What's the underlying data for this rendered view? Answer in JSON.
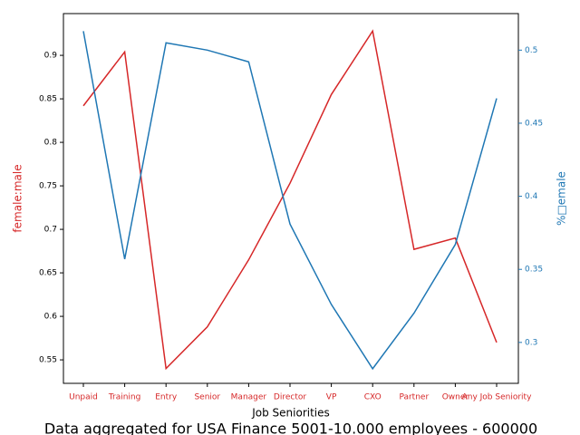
{
  "chart_data": {
    "type": "line",
    "title": "Data aggregated for USA Finance 5001-10.000 employees - 600000",
    "x_label": "Job Seniorities",
    "y_label": "female:male",
    "y2_label": "%□emale",
    "categories": [
      "Unpaid",
      "Training",
      "Entry",
      "Senior",
      "Manager",
      "Director",
      "VP",
      "CXO",
      "Partner",
      "Owner",
      "Any Job Seniority"
    ],
    "series": [
      {
        "name": "female:male",
        "color": "#d62728",
        "values": [
          0.842,
          0.904,
          0.54,
          0.588,
          0.665,
          0.753,
          0.855,
          0.928,
          0.677,
          0.69,
          0.57
        ]
      },
      {
        "name": "%female",
        "color": "#1f77b4",
        "axis": "y2",
        "values": [
          0.513,
          0.357,
          0.505,
          0.5,
          0.492,
          0.381,
          0.326,
          0.282,
          0.32,
          0.367,
          0.467
        ]
      }
    ],
    "ylim": [
      0.523,
      0.948
    ],
    "yticks": [
      0.55,
      0.6,
      0.65,
      0.7,
      0.75,
      0.8,
      0.85,
      0.9
    ],
    "y2lim": [
      0.272,
      0.525
    ],
    "y2ticks": [
      0.3,
      0.35,
      0.4,
      0.45,
      0.5
    ]
  }
}
